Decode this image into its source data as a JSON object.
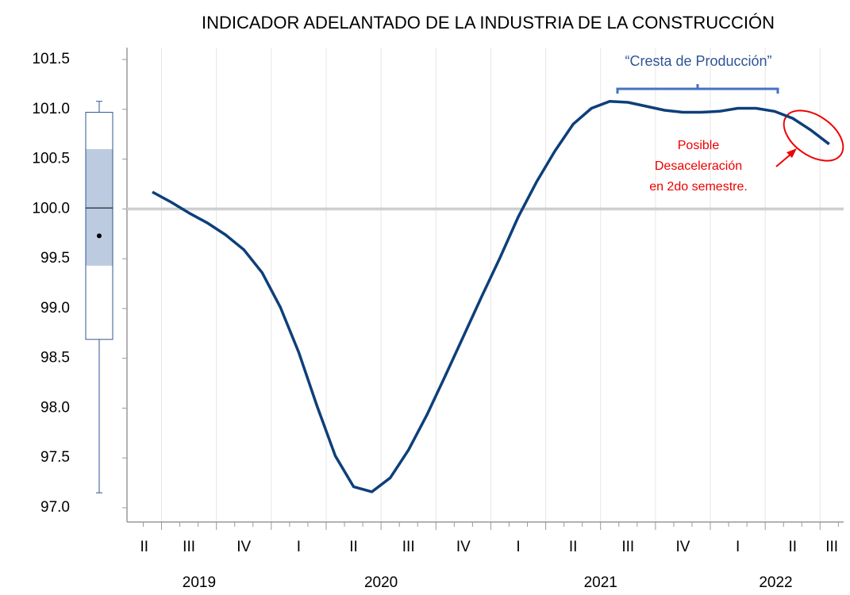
{
  "chart_data": {
    "type": "line",
    "title": "INDICADOR ADELANTADO DE LA INDUSTRIA DE LA CONSTRUCCIÓN",
    "quarter_labels": [
      "II",
      "III",
      "IV",
      "I",
      "II",
      "III",
      "IV",
      "I",
      "II",
      "III",
      "IV",
      "I",
      "II",
      "III"
    ],
    "year_labels": [
      "2019",
      "2020",
      "2021",
      "2022"
    ],
    "series": [
      {
        "color": "#0d3f7a",
        "values": [
          100.17,
          100.07,
          99.96,
          99.86,
          99.74,
          99.59,
          99.36,
          99.01,
          98.56,
          98.02,
          97.52,
          97.21,
          97.16,
          97.3,
          97.58,
          97.93,
          98.32,
          98.72,
          99.12,
          99.51,
          99.92,
          100.27,
          100.58,
          100.85,
          101.01,
          101.08,
          101.07,
          101.03,
          100.99,
          100.97,
          100.97,
          100.98,
          101.01,
          101.01,
          100.98,
          100.91,
          100.79,
          100.65
        ]
      }
    ],
    "ylim": [
      97.0,
      101.5
    ],
    "yticks": [
      {
        "value": 97,
        "label": "97.0"
      },
      97.5,
      {
        "value": 98,
        "label": "98.0"
      },
      98.5,
      {
        "value": 99,
        "label": "99.0"
      },
      99.5,
      {
        "value": 100,
        "label": "100.0"
      },
      100.5,
      {
        "value": 101,
        "label": "101.0"
      },
      101.5
    ],
    "reference_line": 100,
    "boxplot": {
      "min": 97.15,
      "q1": 98.69,
      "median": 100.01,
      "q3": 100.97,
      "max": 101.08,
      "mean": 99.73,
      "band": [
        99.43,
        100.6
      ]
    },
    "annotations": {
      "bracket_label": "“Cresta de Producción”",
      "note": [
        "Posible",
        "Desaceleración",
        "en 2do semestre."
      ]
    }
  }
}
